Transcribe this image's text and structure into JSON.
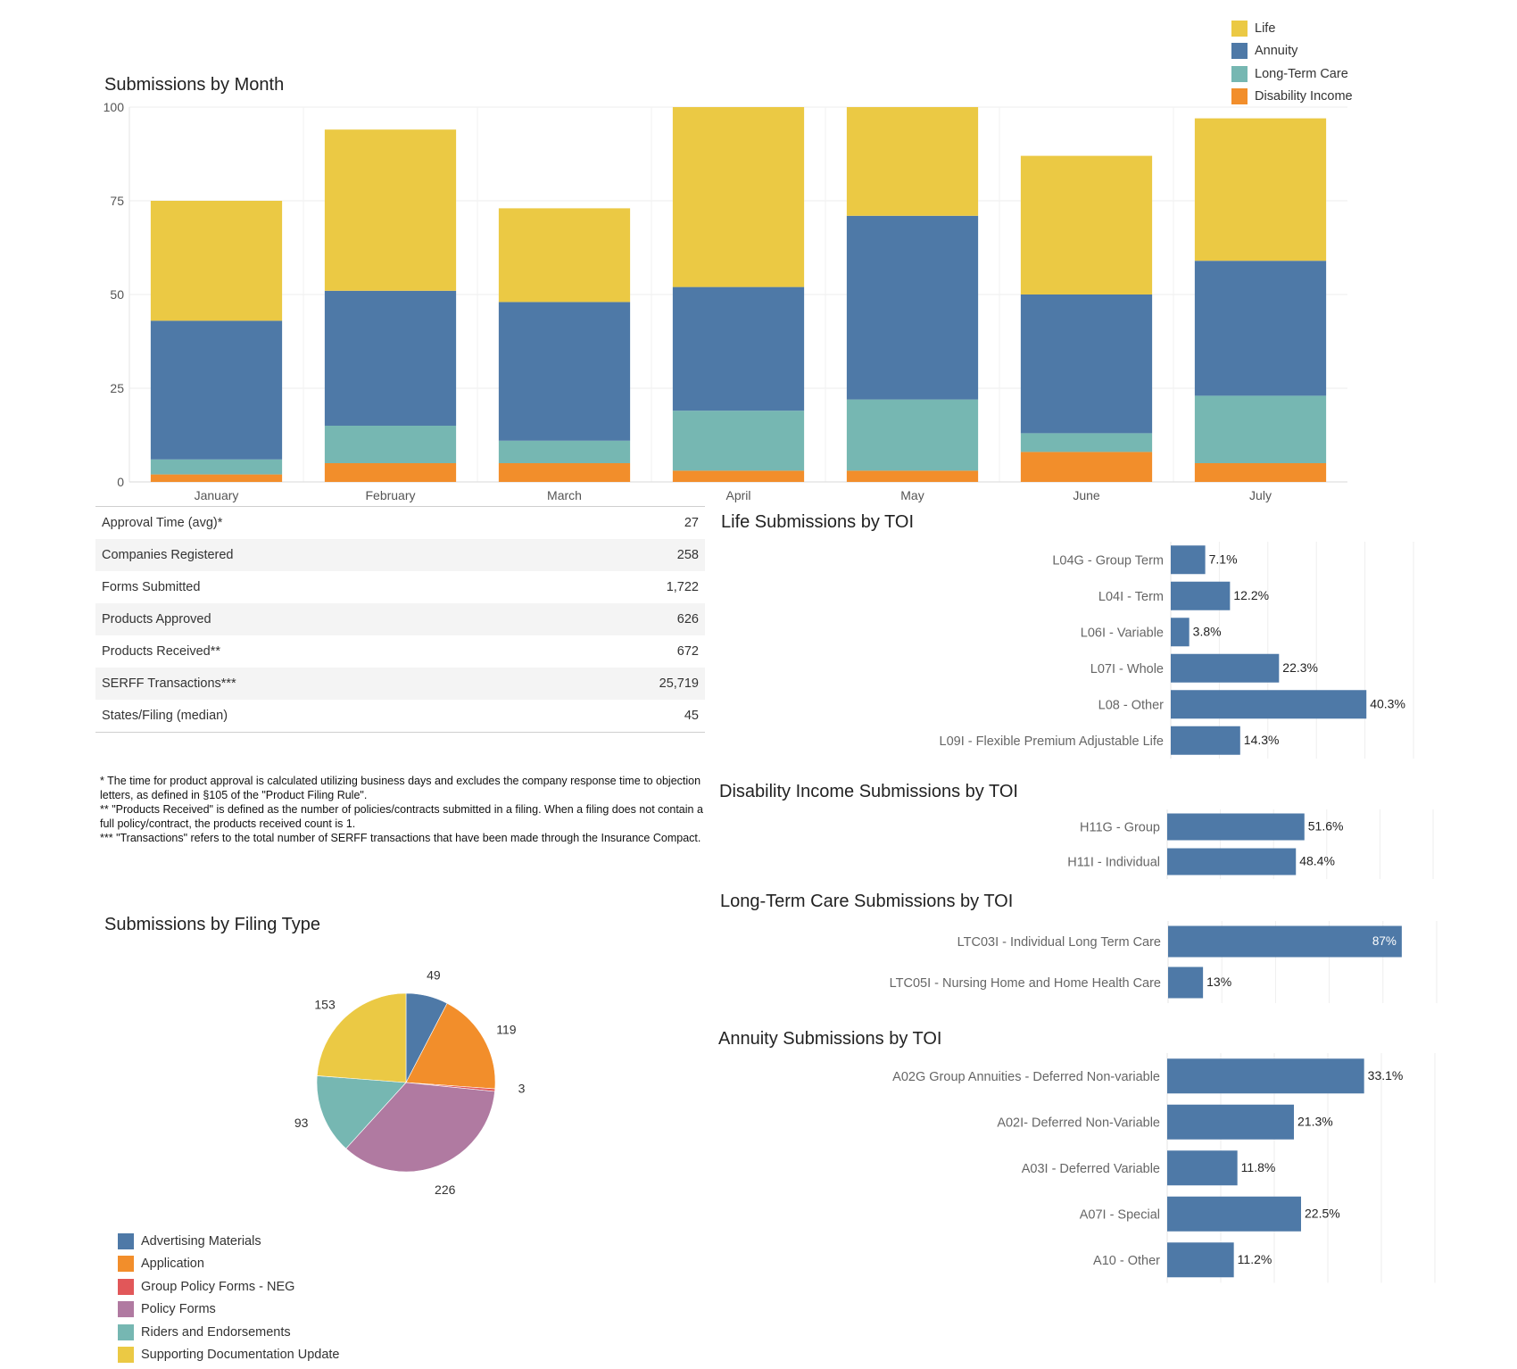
{
  "colors": {
    "life": "#EBC944",
    "annuity": "#4E79A7",
    "ltc": "#76B7B2",
    "di": "#F28E2B",
    "advertising": "#4E79A7",
    "application": "#F28E2B",
    "group_neg": "#E15759",
    "policy_forms": "#B07AA1",
    "riders": "#76B7B2",
    "supporting": "#EBC944",
    "bar": "#4E79A7"
  },
  "month_legend": [
    {
      "label": "Life",
      "color": "#EBC944"
    },
    {
      "label": "Annuity",
      "color": "#4E79A7"
    },
    {
      "label": "Long-Term Care",
      "color": "#76B7B2"
    },
    {
      "label": "Disability Income",
      "color": "#F28E2B"
    }
  ],
  "kpis": [
    {
      "label": "Approval Time (avg)*",
      "value": "27"
    },
    {
      "label": "Companies Registered",
      "value": "258"
    },
    {
      "label": "Forms Submitted",
      "value": "1,722"
    },
    {
      "label": "Products Approved",
      "value": "626"
    },
    {
      "label": "Products Received**",
      "value": "672"
    },
    {
      "label": "SERFF Transactions***",
      "value": "25,719"
    },
    {
      "label": "States/Filing (median)",
      "value": "45"
    }
  ],
  "footnotes": [
    "* The time for product approval is calculated utilizing business days and excludes the company response time to objection letters, as defined in §105 of the \"Product Filing Rule\".",
    "** \"Products Received\" is defined as the number of policies/contracts submitted in a filing. When a filing does not contain a full policy/contract, the products received count is 1.",
    "*** \"Transactions\" refers to the total number of SERFF transactions that have been made through the Insurance Compact."
  ],
  "chart_data": [
    {
      "id": "month",
      "type": "bar",
      "stacked": true,
      "title": "Submissions by Month",
      "categories": [
        "January",
        "February",
        "March",
        "April",
        "May",
        "June",
        "July"
      ],
      "series": [
        {
          "name": "Disability Income",
          "color": "#F28E2B",
          "values": [
            2,
            5,
            5,
            3,
            3,
            8,
            5
          ]
        },
        {
          "name": "Long-Term Care",
          "color": "#76B7B2",
          "values": [
            4,
            10,
            6,
            16,
            19,
            5,
            18
          ]
        },
        {
          "name": "Annuity",
          "color": "#4E79A7",
          "values": [
            37,
            36,
            37,
            33,
            49,
            37,
            36
          ]
        },
        {
          "name": "Life",
          "color": "#EBC944",
          "values": [
            32,
            43,
            25,
            48,
            30,
            37,
            38
          ]
        }
      ],
      "yticks": [
        0,
        25,
        50,
        75,
        100
      ],
      "ylim": [
        0,
        100
      ],
      "legend": "top-right"
    },
    {
      "id": "filing",
      "type": "pie",
      "title": "Submissions by Filing Type",
      "slices": [
        {
          "label": "Advertising Materials",
          "value": 49,
          "color": "#4E79A7"
        },
        {
          "label": "Application",
          "value": 119,
          "color": "#F28E2B"
        },
        {
          "label": "Group Policy Forms - NEG",
          "value": 3,
          "color": "#E15759"
        },
        {
          "label": "Policy Forms",
          "value": 226,
          "color": "#B07AA1"
        },
        {
          "label": "Riders and Endorsements",
          "value": 93,
          "color": "#76B7B2"
        },
        {
          "label": "Supporting Documentation Update",
          "value": 153,
          "color": "#EBC944"
        }
      ],
      "legend": "bottom-left"
    },
    {
      "id": "life",
      "type": "bar",
      "orientation": "horizontal",
      "title": "Life Submissions by TOI",
      "categories": [
        "L04G - Group Term",
        "L04I - Term",
        "L06I - Variable",
        "L07I - Whole",
        "L08 - Other",
        "L09I - Flexible Premium Adjustable Life"
      ],
      "values": [
        7.1,
        12.2,
        3.8,
        22.3,
        40.3,
        14.3
      ],
      "labels": [
        "7.1%",
        "12.2%",
        "3.8%",
        "22.3%",
        "40.3%",
        "14.3%"
      ],
      "xlim": [
        0,
        50
      ]
    },
    {
      "id": "di",
      "type": "bar",
      "orientation": "horizontal",
      "title": "Disability Income Submissions by TOI",
      "categories": [
        "H11G - Group",
        "H11I - Individual"
      ],
      "values": [
        51.6,
        48.4
      ],
      "labels": [
        "51.6%",
        "48.4%"
      ],
      "xlim": [
        0,
        100
      ]
    },
    {
      "id": "ltc",
      "type": "bar",
      "orientation": "horizontal",
      "title": "Long-Term Care Submissions by TOI",
      "categories": [
        "LTC03I - Individual Long Term Care",
        "LTC05I  - Nursing Home and Home Health Care"
      ],
      "values": [
        87,
        13
      ],
      "labels": [
        "87%",
        "13%"
      ],
      "xlim": [
        0,
        100
      ]
    },
    {
      "id": "annuity",
      "type": "bar",
      "orientation": "horizontal",
      "title": "Annuity Submissions by TOI",
      "categories": [
        "A02G Group Annuities - Deferred Non-variable",
        "A02I- Deferred Non-Variable",
        "A03I - Deferred Variable",
        "A07I - Special",
        "A10 - Other"
      ],
      "values": [
        33.1,
        21.3,
        11.8,
        22.5,
        11.2
      ],
      "labels": [
        "33.1%",
        "21.3%",
        "11.8%",
        "22.5%",
        "11.2%"
      ],
      "xlim": [
        0,
        45
      ]
    }
  ]
}
